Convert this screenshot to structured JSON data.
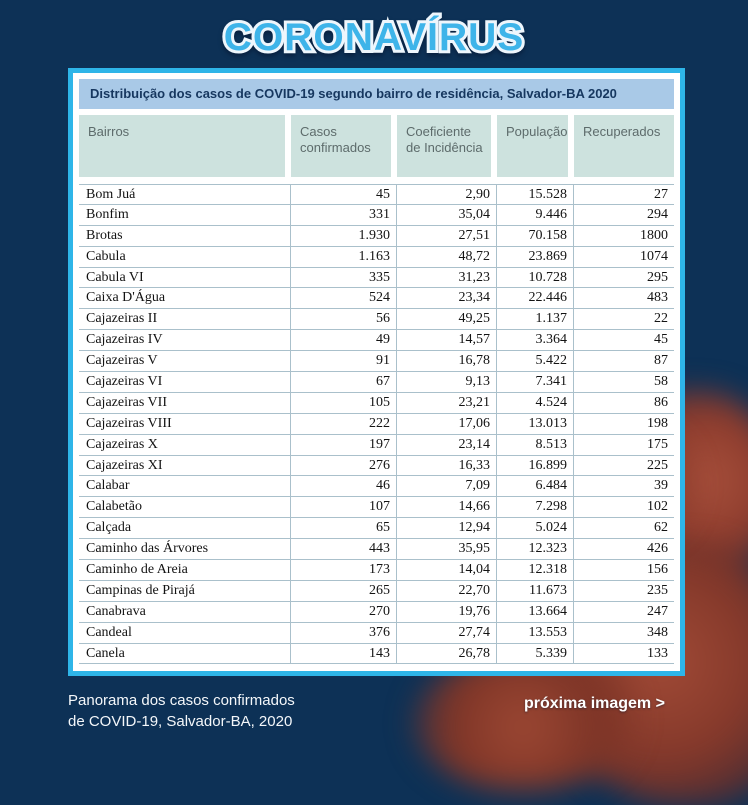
{
  "page_title": "CORONAVÍRUS",
  "table": {
    "title": "Distribuição dos casos de COVID-19 segundo bairro de residência, Salvador-BA 2020",
    "columns": [
      "Bairros",
      "Casos confirmados",
      "Coeficiente de Incidência",
      "População",
      "Recuperados"
    ],
    "rows": [
      [
        "Bom Juá",
        "45",
        "2,90",
        "15.528",
        "27"
      ],
      [
        "Bonfim",
        "331",
        "35,04",
        "9.446",
        "294"
      ],
      [
        "Brotas",
        "1.930",
        "27,51",
        "70.158",
        "1800"
      ],
      [
        "Cabula",
        "1.163",
        "48,72",
        "23.869",
        "1074"
      ],
      [
        "Cabula VI",
        "335",
        "31,23",
        "10.728",
        "295"
      ],
      [
        "Caixa D'Água",
        "524",
        "23,34",
        "22.446",
        "483"
      ],
      [
        "Cajazeiras II",
        "56",
        "49,25",
        "1.137",
        "22"
      ],
      [
        "Cajazeiras IV",
        "49",
        "14,57",
        "3.364",
        "45"
      ],
      [
        "Cajazeiras V",
        "91",
        "16,78",
        "5.422",
        "87"
      ],
      [
        "Cajazeiras VI",
        "67",
        "9,13",
        "7.341",
        "58"
      ],
      [
        "Cajazeiras VII",
        "105",
        "23,21",
        "4.524",
        "86"
      ],
      [
        "Cajazeiras VIII",
        "222",
        "17,06",
        "13.013",
        "198"
      ],
      [
        "Cajazeiras X",
        "197",
        "23,14",
        "8.513",
        "175"
      ],
      [
        "Cajazeiras XI",
        "276",
        "16,33",
        "16.899",
        "225"
      ],
      [
        "Calabar",
        "46",
        "7,09",
        "6.484",
        "39"
      ],
      [
        "Calabetão",
        "107",
        "14,66",
        "7.298",
        "102"
      ],
      [
        "Calçada",
        "65",
        "12,94",
        "5.024",
        "62"
      ],
      [
        "Caminho das Árvores",
        "443",
        "35,95",
        "12.323",
        "426"
      ],
      [
        "Caminho de Areia",
        "173",
        "14,04",
        "12.318",
        "156"
      ],
      [
        "Campinas de Pirajá",
        "265",
        "22,70",
        "11.673",
        "235"
      ],
      [
        "Canabrava",
        "270",
        "19,76",
        "13.664",
        "247"
      ],
      [
        "Candeal",
        "376",
        "27,74",
        "13.553",
        "348"
      ],
      [
        "Canela",
        "143",
        "26,78",
        "5.339",
        "133"
      ]
    ]
  },
  "footer": {
    "caption_line1": "Panorama dos casos confirmados",
    "caption_line2": "de COVID-19, Salvador-BA, 2020",
    "next_link": "próxima imagem >"
  },
  "colors": {
    "background": "#0d3156",
    "table_border": "#2eb5e8",
    "title_text": "#3eb4e9",
    "table_title_bg": "#a9c9e7",
    "table_title_text": "#16375f",
    "header_cell_bg": "#cde2de",
    "header_cell_text": "#5d6b6b",
    "grid_line": "#aac0cb",
    "virus_decoration": "#8d3c2d"
  }
}
